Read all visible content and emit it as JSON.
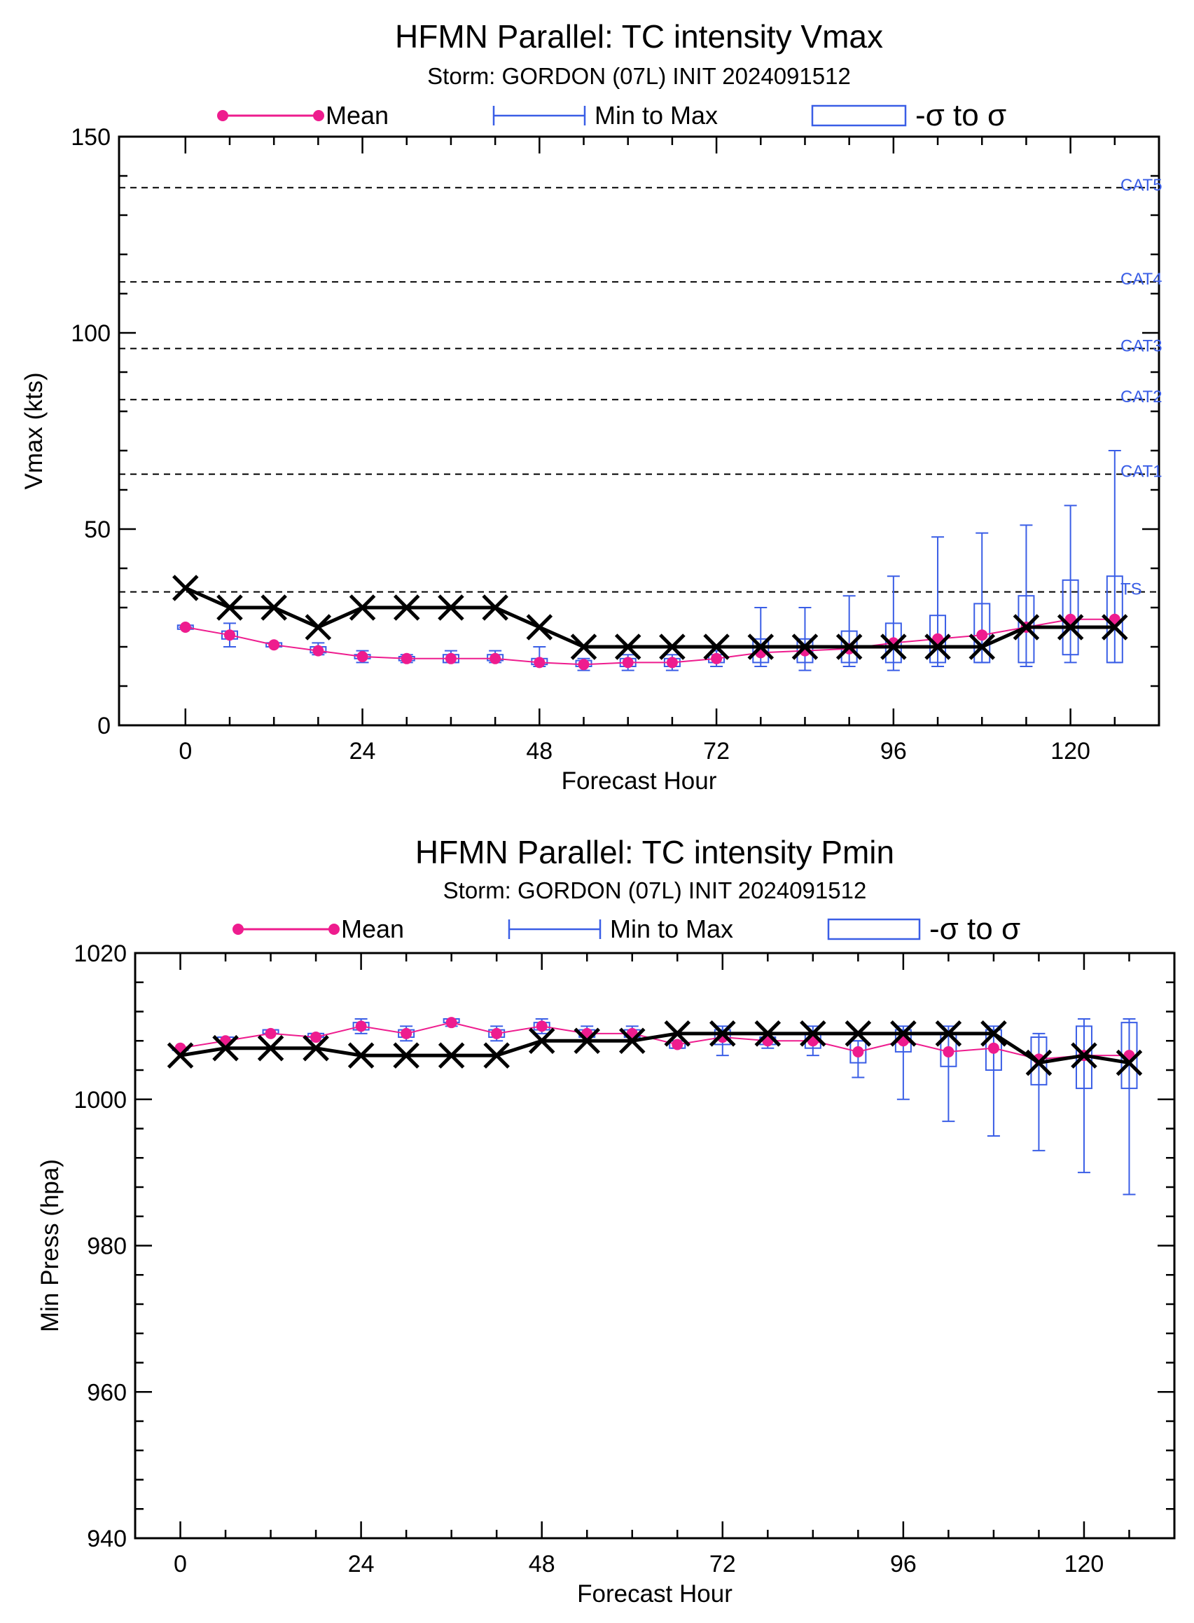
{
  "chart_data": [
    {
      "type": "line",
      "title": "HFMN Parallel: TC intensity Vmax",
      "subtitle": "Storm: GORDON (07L) INIT 2024091512",
      "xlabel": "Forecast Hour",
      "ylabel": "Vmax (kts)",
      "xlim": [
        -9,
        132
      ],
      "ylim": [
        0,
        150
      ],
      "x_ticks": [
        0,
        24,
        48,
        72,
        96,
        120
      ],
      "y_ticks": [
        0,
        50,
        100,
        150
      ],
      "y_minor_step": 10,
      "legend": {
        "placement": "top",
        "entries": [
          "Mean",
          "Min to Max",
          "-σ to σ"
        ]
      },
      "reference_lines": [
        {
          "label": "CAT5",
          "value": 137
        },
        {
          "label": "CAT4",
          "value": 113
        },
        {
          "label": "CAT3",
          "value": 96
        },
        {
          "label": "CAT2",
          "value": 83
        },
        {
          "label": "CAT1",
          "value": 64
        },
        {
          "label": "TS",
          "value": 34
        }
      ],
      "ensemble": {
        "hours": [
          0,
          6,
          12,
          18,
          24,
          30,
          36,
          42,
          48,
          54,
          60,
          66,
          72,
          78,
          84,
          90,
          96,
          102,
          108,
          114,
          120,
          126
        ],
        "mean": [
          25,
          23,
          20.5,
          19,
          17.5,
          17,
          17,
          17,
          16,
          15.5,
          16,
          16,
          17,
          18.5,
          19,
          19.5,
          21,
          22,
          23,
          25,
          27,
          27
        ],
        "min": [
          25,
          20,
          20,
          18,
          16,
          16,
          16,
          16,
          15,
          14,
          14,
          14,
          15,
          15,
          14,
          15,
          14,
          15,
          16,
          15,
          16,
          16
        ],
        "max": [
          25,
          26,
          21,
          21,
          19,
          18,
          19,
          19,
          20,
          17,
          18,
          18,
          19,
          30,
          30,
          33,
          38,
          48,
          49,
          51,
          56,
          70
        ],
        "sd_low": [
          24.5,
          22,
          20,
          18.5,
          17,
          16.5,
          16,
          16.5,
          15.5,
          15,
          15,
          15,
          16,
          16,
          16,
          16,
          16,
          16,
          16,
          16,
          18,
          16
        ],
        "sd_high": [
          25.5,
          24,
          21,
          20,
          18,
          17.5,
          18,
          18,
          17,
          16.5,
          17,
          17,
          18,
          22,
          22,
          24,
          26,
          28,
          31,
          33,
          37,
          38
        ]
      },
      "official": {
        "hours": [
          0,
          6,
          12,
          18,
          24,
          30,
          36,
          42,
          48,
          54,
          60,
          66,
          72,
          78,
          84,
          90,
          96,
          102,
          108,
          114,
          120,
          126
        ],
        "values": [
          35,
          30,
          30,
          25,
          30,
          30,
          30,
          30,
          25,
          20,
          20,
          20,
          20,
          20,
          20,
          20,
          20,
          20,
          20,
          25,
          25,
          25
        ]
      }
    },
    {
      "type": "line",
      "title": "HFMN Parallel: TC intensity Pmin",
      "subtitle": "Storm: GORDON (07L) INIT 2024091512",
      "xlabel": "Forecast Hour",
      "ylabel": "Min Press (hpa)",
      "xlim": [
        -6,
        132
      ],
      "ylim": [
        940,
        1020
      ],
      "x_ticks": [
        0,
        24,
        48,
        72,
        96,
        120
      ],
      "y_ticks": [
        940,
        960,
        980,
        1000,
        1020
      ],
      "y_minor_step": 4,
      "legend": {
        "placement": "top",
        "entries": [
          "Mean",
          "Min to Max",
          "-σ to σ"
        ]
      },
      "ensemble": {
        "hours": [
          0,
          6,
          12,
          18,
          24,
          30,
          36,
          42,
          48,
          54,
          60,
          66,
          72,
          78,
          84,
          90,
          96,
          102,
          108,
          114,
          120,
          126
        ],
        "mean": [
          1007,
          1008,
          1009,
          1008.5,
          1010,
          1009,
          1010.5,
          1009,
          1010,
          1009,
          1009,
          1007.5,
          1008.5,
          1008,
          1008,
          1006.5,
          1008,
          1006.5,
          1007,
          1005.5,
          1006,
          1006
        ],
        "min": [
          1007,
          1008,
          1009,
          1008,
          1009,
          1008,
          1010,
          1008,
          1009,
          1008,
          1008,
          1007,
          1006,
          1007,
          1006,
          1003,
          1000,
          997,
          995,
          993,
          990,
          987
        ],
        "max": [
          1007,
          1008.5,
          1009.5,
          1009,
          1011,
          1010,
          1011,
          1010,
          1011,
          1010,
          1010,
          1008,
          1010,
          1009,
          1010,
          1008,
          1010,
          1010,
          1010,
          1009,
          1011,
          1011
        ],
        "sd_low": [
          1007,
          1008,
          1009,
          1008.5,
          1009.5,
          1008.5,
          1010.5,
          1008.5,
          1009.5,
          1008.5,
          1008.5,
          1007,
          1007.5,
          1007.5,
          1007,
          1005,
          1006.5,
          1004.5,
          1004,
          1002,
          1001.5,
          1001.5
        ],
        "sd_high": [
          1007,
          1008.5,
          1009.5,
          1009,
          1010.5,
          1009.5,
          1011,
          1009.5,
          1010.5,
          1009.5,
          1009.5,
          1008,
          1009.5,
          1008.5,
          1009,
          1008,
          1009.5,
          1009,
          1009.5,
          1008.5,
          1010,
          1010.5
        ]
      },
      "official": {
        "hours": [
          0,
          6,
          12,
          18,
          24,
          30,
          36,
          42,
          48,
          54,
          60,
          66,
          72,
          78,
          84,
          90,
          96,
          102,
          108,
          114,
          120,
          126
        ],
        "values": [
          1006,
          1007,
          1007,
          1007,
          1006,
          1006,
          1006,
          1006,
          1008,
          1008,
          1008,
          1009,
          1009,
          1009,
          1009,
          1009,
          1009,
          1009,
          1009,
          1005,
          1006,
          1005
        ]
      }
    }
  ]
}
